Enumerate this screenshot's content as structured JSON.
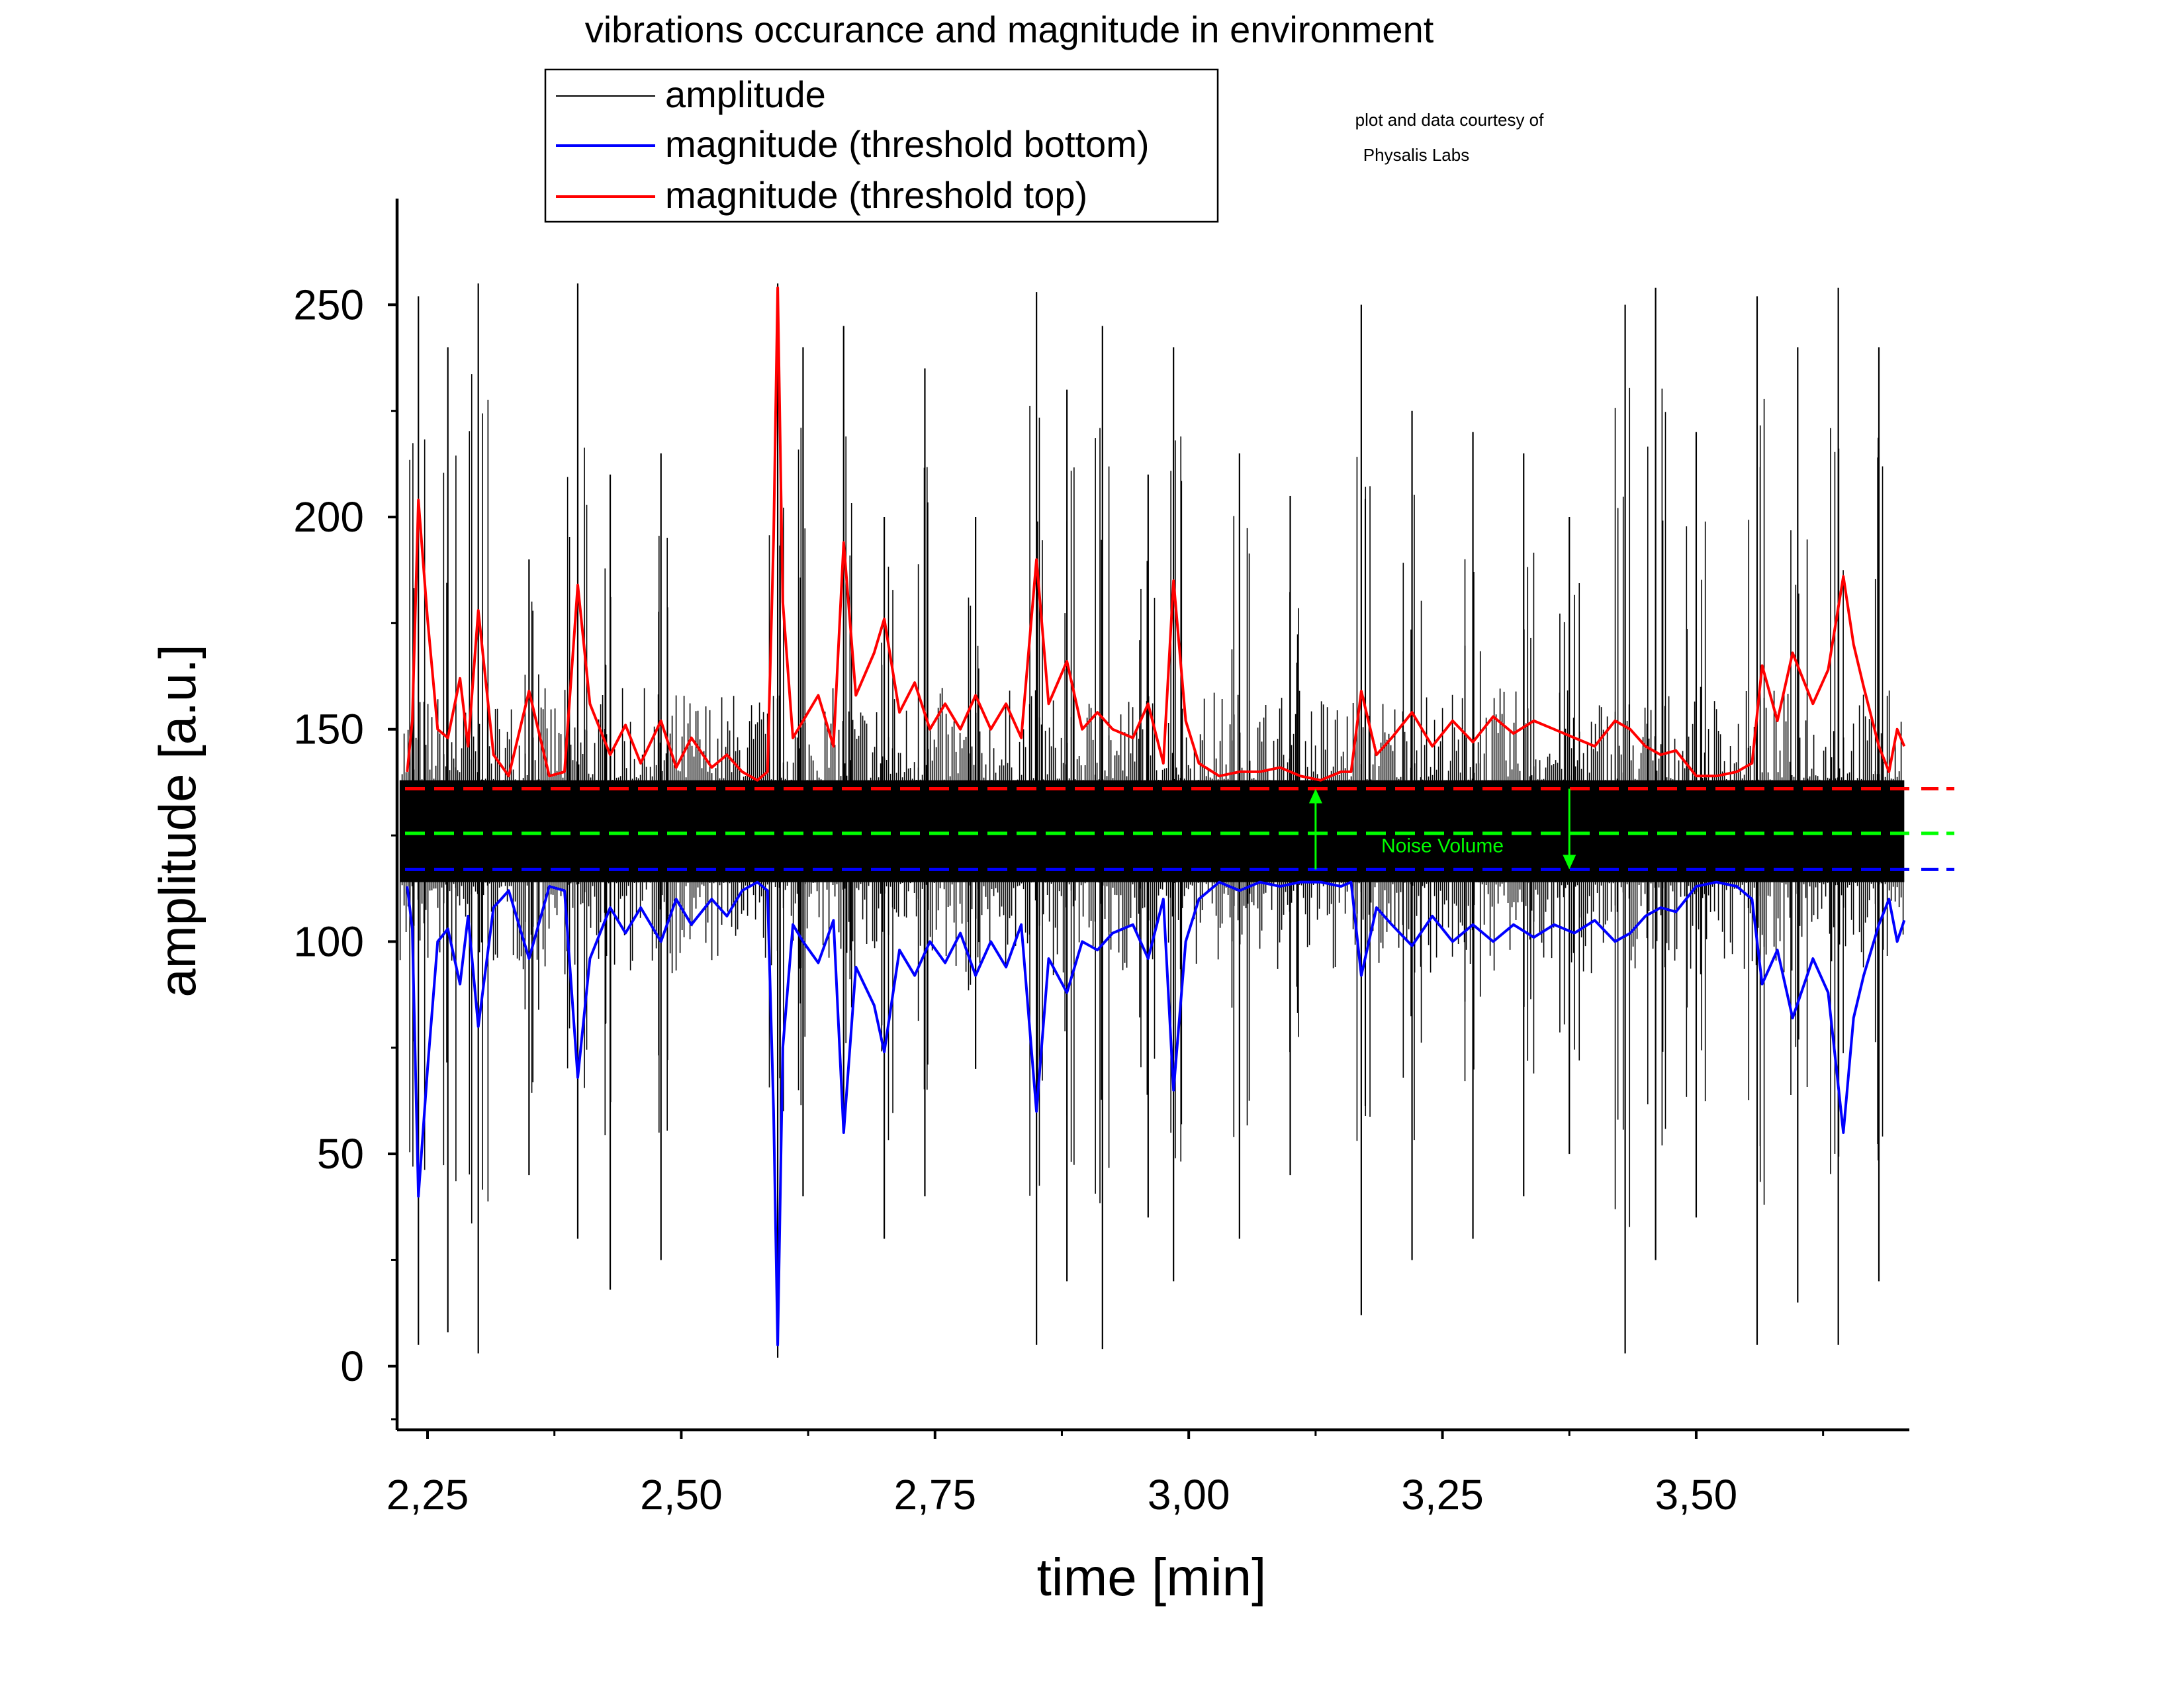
{
  "chart_data": {
    "type": "line",
    "title": "vibrations occurance and magnitude in environment",
    "credit_line1": "plot and data courtesy of",
    "credit_line2": "Physalis Labs",
    "xlabel": "time [min]",
    "ylabel": "amplitude [a.u.]",
    "xlim": [
      2.22,
      3.71
    ],
    "ylim": [
      -15,
      275
    ],
    "x_ticks": [
      2.25,
      2.5,
      2.75,
      3.0,
      3.25,
      3.5
    ],
    "x_tick_labels": [
      "2,25",
      "2,50",
      "2,75",
      "3,00",
      "3,25",
      "3,50"
    ],
    "y_ticks": [
      0,
      50,
      100,
      150,
      200,
      250
    ],
    "y_tick_labels": [
      "0",
      "50",
      "100",
      "150",
      "200",
      "250"
    ],
    "grid": false,
    "legend_position": "top-left-outside",
    "series": [
      {
        "name": "amplitude",
        "color": "#000000",
        "baseline": 126,
        "noise_band": [
          114,
          138
        ],
        "spikes": [
          {
            "x": 2.241,
            "max": 252,
            "min": 5
          },
          {
            "x": 2.27,
            "max": 240,
            "min": 8
          },
          {
            "x": 2.3,
            "max": 255,
            "min": 3
          },
          {
            "x": 2.35,
            "max": 190,
            "min": 45
          },
          {
            "x": 2.398,
            "max": 255,
            "min": 30
          },
          {
            "x": 2.43,
            "max": 210,
            "min": 18
          },
          {
            "x": 2.48,
            "max": 215,
            "min": 25
          },
          {
            "x": 2.595,
            "max": 255,
            "min": 2
          },
          {
            "x": 2.62,
            "max": 240,
            "min": 40
          },
          {
            "x": 2.66,
            "max": 245,
            "min": 55
          },
          {
            "x": 2.7,
            "max": 200,
            "min": 30
          },
          {
            "x": 2.74,
            "max": 235,
            "min": 40
          },
          {
            "x": 2.79,
            "max": 200,
            "min": 70
          },
          {
            "x": 2.85,
            "max": 253,
            "min": 5
          },
          {
            "x": 2.88,
            "max": 230,
            "min": 20
          },
          {
            "x": 2.915,
            "max": 245,
            "min": 4
          },
          {
            "x": 2.96,
            "max": 210,
            "min": 35
          },
          {
            "x": 2.985,
            "max": 240,
            "min": 20
          },
          {
            "x": 3.05,
            "max": 215,
            "min": 30
          },
          {
            "x": 3.1,
            "max": 205,
            "min": 45
          },
          {
            "x": 3.17,
            "max": 250,
            "min": 12
          },
          {
            "x": 3.22,
            "max": 225,
            "min": 25
          },
          {
            "x": 3.28,
            "max": 220,
            "min": 30
          },
          {
            "x": 3.33,
            "max": 215,
            "min": 40
          },
          {
            "x": 3.375,
            "max": 200,
            "min": 50
          },
          {
            "x": 3.43,
            "max": 250,
            "min": 3
          },
          {
            "x": 3.46,
            "max": 254,
            "min": 25
          },
          {
            "x": 3.5,
            "max": 220,
            "min": 35
          },
          {
            "x": 3.56,
            "max": 252,
            "min": 5
          },
          {
            "x": 3.6,
            "max": 240,
            "min": 15
          },
          {
            "x": 3.64,
            "max": 254,
            "min": 5
          },
          {
            "x": 3.68,
            "max": 240,
            "min": 20
          }
        ]
      },
      {
        "name": "magnitude (threshold bottom)",
        "color": "#0000ff",
        "points": [
          [
            2.23,
            113
          ],
          [
            2.235,
            103
          ],
          [
            2.241,
            40
          ],
          [
            2.25,
            70
          ],
          [
            2.26,
            100
          ],
          [
            2.27,
            103
          ],
          [
            2.282,
            90
          ],
          [
            2.29,
            106
          ],
          [
            2.3,
            80
          ],
          [
            2.315,
            108
          ],
          [
            2.33,
            112
          ],
          [
            2.35,
            96
          ],
          [
            2.37,
            113
          ],
          [
            2.385,
            112
          ],
          [
            2.398,
            68
          ],
          [
            2.41,
            96
          ],
          [
            2.43,
            108
          ],
          [
            2.445,
            102
          ],
          [
            2.46,
            108
          ],
          [
            2.48,
            100
          ],
          [
            2.495,
            110
          ],
          [
            2.51,
            104
          ],
          [
            2.53,
            110
          ],
          [
            2.545,
            106
          ],
          [
            2.56,
            112
          ],
          [
            2.575,
            114
          ],
          [
            2.585,
            112
          ],
          [
            2.591,
            60
          ],
          [
            2.595,
            5
          ],
          [
            2.6,
            75
          ],
          [
            2.61,
            104
          ],
          [
            2.62,
            100
          ],
          [
            2.635,
            95
          ],
          [
            2.65,
            105
          ],
          [
            2.66,
            55
          ],
          [
            2.672,
            94
          ],
          [
            2.69,
            85
          ],
          [
            2.7,
            74
          ],
          [
            2.715,
            98
          ],
          [
            2.73,
            92
          ],
          [
            2.745,
            100
          ],
          [
            2.76,
            95
          ],
          [
            2.775,
            102
          ],
          [
            2.79,
            92
          ],
          [
            2.805,
            100
          ],
          [
            2.82,
            94
          ],
          [
            2.835,
            104
          ],
          [
            2.85,
            60
          ],
          [
            2.862,
            96
          ],
          [
            2.88,
            88
          ],
          [
            2.895,
            100
          ],
          [
            2.91,
            98
          ],
          [
            2.925,
            102
          ],
          [
            2.945,
            104
          ],
          [
            2.96,
            96
          ],
          [
            2.975,
            110
          ],
          [
            2.985,
            65
          ],
          [
            2.997,
            100
          ],
          [
            3.01,
            110
          ],
          [
            3.03,
            114
          ],
          [
            3.05,
            112
          ],
          [
            3.07,
            114
          ],
          [
            3.09,
            113
          ],
          [
            3.11,
            114
          ],
          [
            3.13,
            114
          ],
          [
            3.15,
            113
          ],
          [
            3.16,
            114
          ],
          [
            3.17,
            92
          ],
          [
            3.185,
            108
          ],
          [
            3.2,
            104
          ],
          [
            3.22,
            99
          ],
          [
            3.24,
            106
          ],
          [
            3.26,
            100
          ],
          [
            3.28,
            104
          ],
          [
            3.3,
            100
          ],
          [
            3.32,
            104
          ],
          [
            3.34,
            101
          ],
          [
            3.36,
            104
          ],
          [
            3.38,
            102
          ],
          [
            3.4,
            105
          ],
          [
            3.42,
            100
          ],
          [
            3.435,
            102
          ],
          [
            3.45,
            106
          ],
          [
            3.465,
            108
          ],
          [
            3.48,
            107
          ],
          [
            3.5,
            113
          ],
          [
            3.52,
            114
          ],
          [
            3.54,
            113
          ],
          [
            3.555,
            110
          ],
          [
            3.565,
            90
          ],
          [
            3.58,
            98
          ],
          [
            3.595,
            82
          ],
          [
            3.615,
            96
          ],
          [
            3.63,
            88
          ],
          [
            3.645,
            55
          ],
          [
            3.655,
            82
          ],
          [
            3.665,
            92
          ],
          [
            3.68,
            104
          ],
          [
            3.69,
            110
          ],
          [
            3.698,
            100
          ],
          [
            3.705,
            105
          ]
        ]
      },
      {
        "name": "magnitude (threshold top)",
        "color": "#ff0000",
        "points": [
          [
            2.23,
            140
          ],
          [
            2.235,
            152
          ],
          [
            2.241,
            204
          ],
          [
            2.25,
            176
          ],
          [
            2.26,
            150
          ],
          [
            2.27,
            148
          ],
          [
            2.282,
            162
          ],
          [
            2.29,
            146
          ],
          [
            2.3,
            178
          ],
          [
            2.315,
            144
          ],
          [
            2.33,
            139
          ],
          [
            2.35,
            159
          ],
          [
            2.37,
            139
          ],
          [
            2.385,
            140
          ],
          [
            2.398,
            184
          ],
          [
            2.41,
            156
          ],
          [
            2.43,
            144
          ],
          [
            2.445,
            151
          ],
          [
            2.46,
            142
          ],
          [
            2.48,
            152
          ],
          [
            2.495,
            141
          ],
          [
            2.51,
            148
          ],
          [
            2.53,
            141
          ],
          [
            2.545,
            144
          ],
          [
            2.56,
            140
          ],
          [
            2.575,
            138
          ],
          [
            2.585,
            140
          ],
          [
            2.591,
            195
          ],
          [
            2.595,
            254
          ],
          [
            2.6,
            180
          ],
          [
            2.61,
            148
          ],
          [
            2.62,
            152
          ],
          [
            2.635,
            158
          ],
          [
            2.65,
            146
          ],
          [
            2.66,
            194
          ],
          [
            2.672,
            158
          ],
          [
            2.69,
            168
          ],
          [
            2.7,
            176
          ],
          [
            2.715,
            154
          ],
          [
            2.73,
            161
          ],
          [
            2.745,
            150
          ],
          [
            2.76,
            156
          ],
          [
            2.775,
            150
          ],
          [
            2.79,
            158
          ],
          [
            2.805,
            150
          ],
          [
            2.82,
            156
          ],
          [
            2.835,
            148
          ],
          [
            2.85,
            190
          ],
          [
            2.862,
            156
          ],
          [
            2.88,
            166
          ],
          [
            2.895,
            150
          ],
          [
            2.91,
            154
          ],
          [
            2.925,
            150
          ],
          [
            2.945,
            148
          ],
          [
            2.96,
            156
          ],
          [
            2.975,
            142
          ],
          [
            2.985,
            185
          ],
          [
            2.997,
            152
          ],
          [
            3.01,
            142
          ],
          [
            3.03,
            139
          ],
          [
            3.05,
            140
          ],
          [
            3.07,
            140
          ],
          [
            3.09,
            141
          ],
          [
            3.11,
            139
          ],
          [
            3.13,
            138
          ],
          [
            3.15,
            140
          ],
          [
            3.16,
            140
          ],
          [
            3.17,
            159
          ],
          [
            3.185,
            144
          ],
          [
            3.2,
            148
          ],
          [
            3.22,
            154
          ],
          [
            3.24,
            146
          ],
          [
            3.26,
            152
          ],
          [
            3.28,
            147
          ],
          [
            3.3,
            153
          ],
          [
            3.32,
            149
          ],
          [
            3.34,
            152
          ],
          [
            3.36,
            150
          ],
          [
            3.38,
            148
          ],
          [
            3.4,
            146
          ],
          [
            3.42,
            152
          ],
          [
            3.435,
            150
          ],
          [
            3.45,
            146
          ],
          [
            3.465,
            144
          ],
          [
            3.48,
            145
          ],
          [
            3.5,
            139
          ],
          [
            3.52,
            139
          ],
          [
            3.54,
            140
          ],
          [
            3.555,
            142
          ],
          [
            3.565,
            165
          ],
          [
            3.58,
            152
          ],
          [
            3.595,
            168
          ],
          [
            3.615,
            156
          ],
          [
            3.63,
            164
          ],
          [
            3.645,
            186
          ],
          [
            3.655,
            170
          ],
          [
            3.665,
            160
          ],
          [
            3.68,
            146
          ],
          [
            3.69,
            140
          ],
          [
            3.698,
            150
          ],
          [
            3.705,
            146
          ]
        ]
      }
    ],
    "reference_lines": [
      {
        "name": "top threshold",
        "y": 136,
        "color": "#ff0000",
        "style": "dashed"
      },
      {
        "name": "noise level",
        "y": 125.5,
        "color": "#00ff00",
        "style": "dashed"
      },
      {
        "name": "bottom threshold",
        "y": 117,
        "color": "#0000ff",
        "style": "dashed"
      }
    ],
    "annotation": {
      "text": "Noise Volume",
      "color": "#00ff00",
      "arrow_up": {
        "x": 3.125,
        "from": 117,
        "to": 136
      },
      "arrow_down": {
        "x": 3.375,
        "from": 136,
        "to": 117
      }
    }
  }
}
